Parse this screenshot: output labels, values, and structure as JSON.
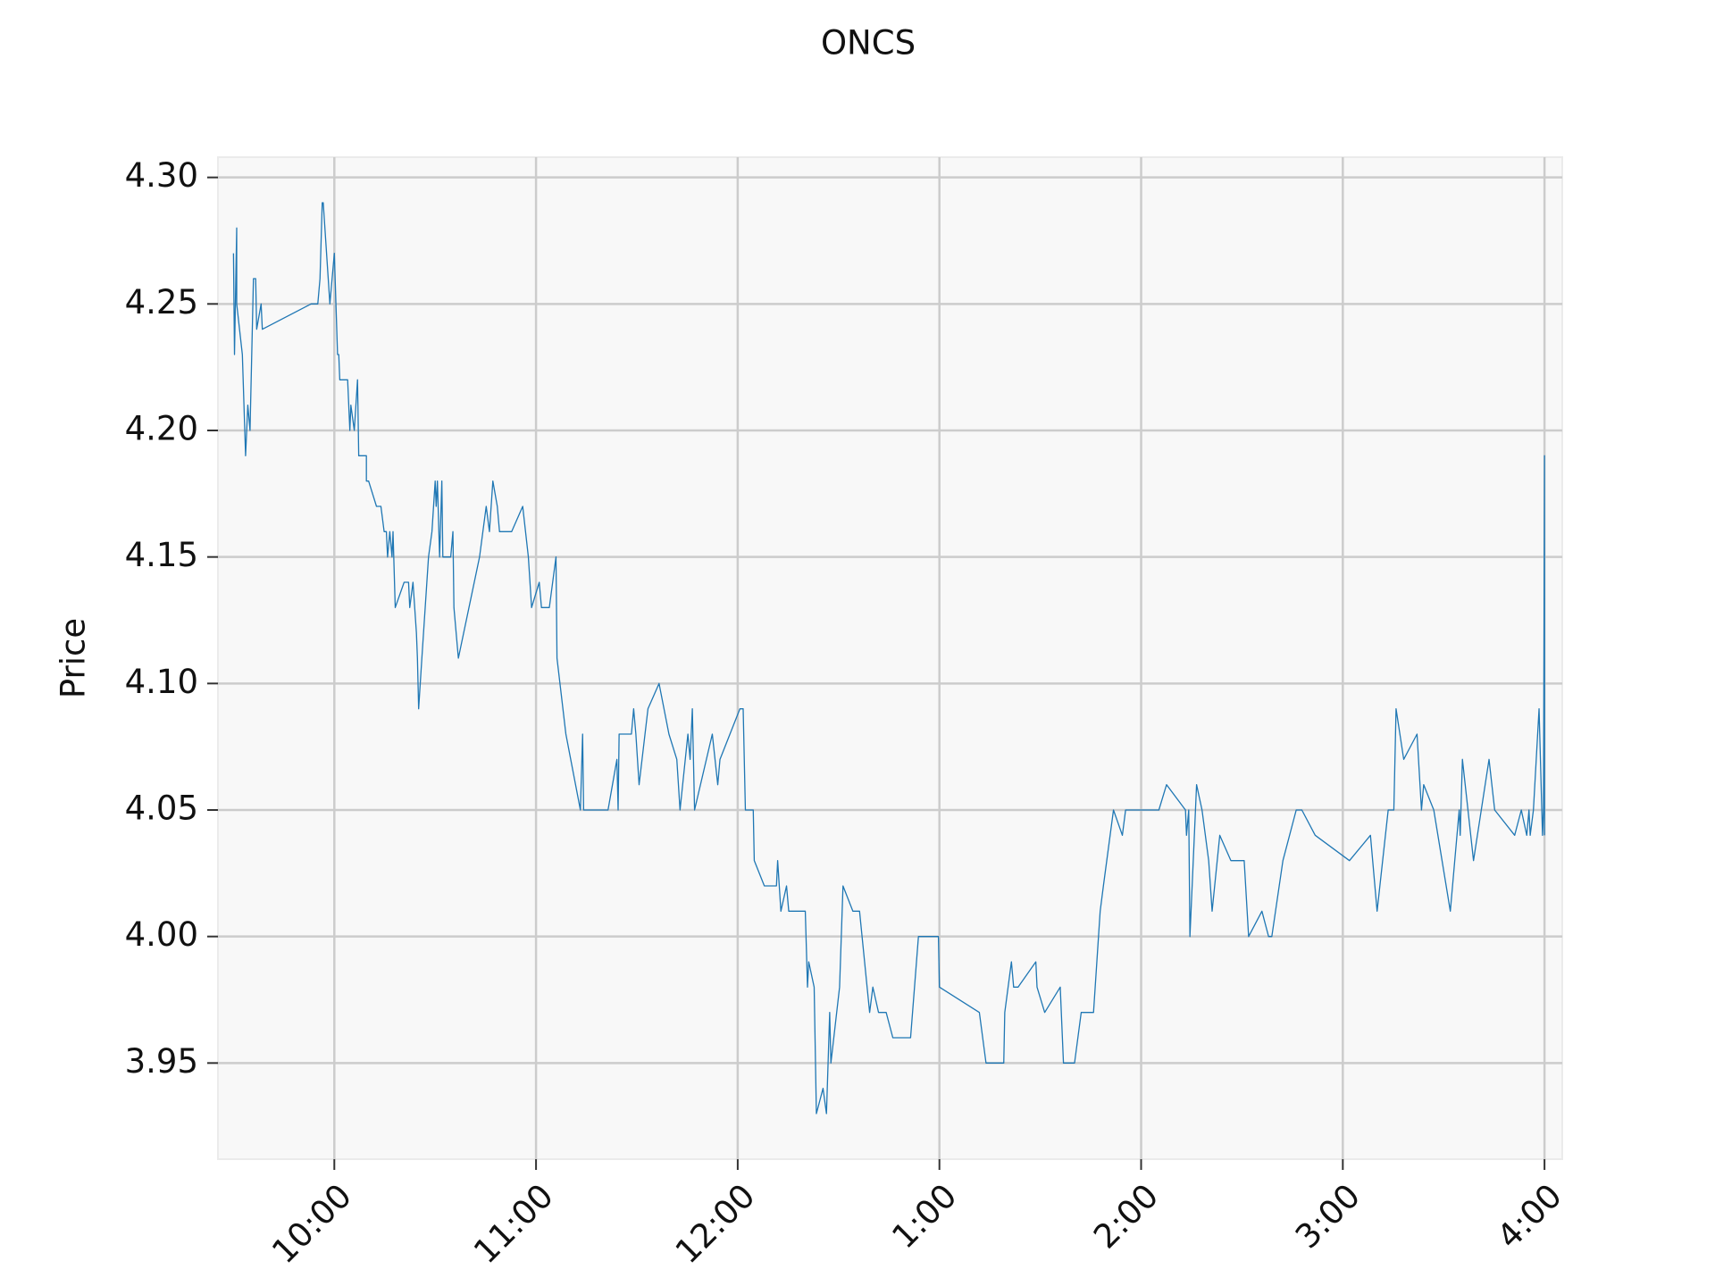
{
  "chart_data": {
    "type": "line",
    "title": "ONCS",
    "ylabel": "Price",
    "color": "#1f77b4",
    "grid": true,
    "xlim": [
      9.423,
      16.088
    ],
    "ylim": [
      3.912,
      4.308
    ],
    "xticks": [
      {
        "value": 10,
        "label": "10:00"
      },
      {
        "value": 11,
        "label": "11:00"
      },
      {
        "value": 12,
        "label": "12:00"
      },
      {
        "value": 13,
        "label": "1:00"
      },
      {
        "value": 14,
        "label": "2:00"
      },
      {
        "value": 15,
        "label": "3:00"
      },
      {
        "value": 16,
        "label": "4:00"
      }
    ],
    "yticks": [
      3.95,
      {
        "value": 4.0,
        "label": "4.00"
      },
      4.05,
      {
        "value": 4.1,
        "label": "4.10"
      },
      4.15,
      {
        "value": 4.2,
        "label": "4.20"
      },
      4.25,
      {
        "value": 4.3,
        "label": "4.30"
      }
    ],
    "x": [
      9.5,
      9.505,
      9.516,
      9.516,
      9.544,
      9.56,
      9.571,
      9.582,
      9.599,
      9.61,
      9.615,
      9.637,
      9.643,
      9.885,
      9.918,
      9.929,
      9.94,
      9.945,
      9.978,
      10.0,
      10.016,
      10.022,
      10.027,
      10.066,
      10.077,
      10.082,
      10.099,
      10.115,
      10.121,
      10.159,
      10.159,
      10.17,
      10.209,
      10.231,
      10.247,
      10.258,
      10.264,
      10.275,
      10.286,
      10.291,
      10.302,
      10.346,
      10.368,
      10.374,
      10.39,
      10.407,
      10.412,
      10.418,
      10.434,
      10.467,
      10.484,
      10.5,
      10.505,
      10.511,
      10.522,
      10.533,
      10.538,
      10.577,
      10.588,
      10.593,
      10.615,
      10.72,
      10.753,
      10.769,
      10.786,
      10.808,
      10.819,
      10.879,
      10.934,
      10.962,
      10.978,
      11.016,
      11.027,
      11.066,
      11.099,
      11.104,
      11.148,
      11.22,
      11.231,
      11.236,
      11.357,
      11.401,
      11.407,
      11.412,
      11.473,
      11.484,
      11.495,
      11.511,
      11.555,
      11.61,
      11.659,
      11.698,
      11.714,
      11.753,
      11.764,
      11.775,
      11.786,
      11.874,
      11.901,
      11.912,
      12.011,
      12.027,
      12.038,
      12.077,
      12.082,
      12.132,
      12.192,
      12.198,
      12.214,
      12.242,
      12.253,
      12.335,
      12.346,
      12.352,
      12.379,
      12.39,
      12.423,
      12.44,
      12.456,
      12.462,
      12.505,
      12.522,
      12.571,
      12.604,
      12.654,
      12.67,
      12.698,
      12.736,
      12.769,
      12.857,
      12.896,
      12.995,
      13.0,
      13.198,
      13.231,
      13.319,
      13.324,
      13.357,
      13.368,
      13.39,
      13.478,
      13.484,
      13.522,
      13.599,
      13.615,
      13.67,
      13.703,
      13.764,
      13.797,
      13.813,
      13.863,
      13.907,
      13.923,
      14.088,
      14.126,
      14.22,
      14.225,
      14.236,
      14.242,
      14.275,
      14.302,
      14.335,
      14.352,
      14.39,
      14.445,
      14.511,
      14.533,
      14.599,
      14.632,
      14.648,
      14.703,
      14.769,
      14.797,
      14.863,
      15.033,
      15.137,
      15.17,
      15.225,
      15.253,
      15.264,
      15.302,
      15.368,
      15.39,
      15.401,
      15.451,
      15.533,
      15.577,
      15.582,
      15.593,
      15.648,
      15.725,
      15.753,
      15.852,
      15.885,
      15.912,
      15.923,
      15.929,
      15.945,
      15.973,
      15.99,
      15.995,
      16.0,
      16.0
    ],
    "values": [
      4.27,
      4.23,
      4.28,
      4.25,
      4.23,
      4.19,
      4.21,
      4.2,
      4.26,
      4.26,
      4.24,
      4.25,
      4.24,
      4.25,
      4.25,
      4.26,
      4.29,
      4.29,
      4.25,
      4.27,
      4.23,
      4.23,
      4.22,
      4.22,
      4.2,
      4.21,
      4.2,
      4.22,
      4.19,
      4.19,
      4.18,
      4.18,
      4.17,
      4.17,
      4.16,
      4.16,
      4.15,
      4.16,
      4.15,
      4.16,
      4.13,
      4.14,
      4.14,
      4.13,
      4.14,
      4.12,
      4.11,
      4.09,
      4.11,
      4.15,
      4.16,
      4.18,
      4.17,
      4.18,
      4.15,
      4.18,
      4.15,
      4.15,
      4.16,
      4.13,
      4.11,
      4.15,
      4.17,
      4.16,
      4.18,
      4.17,
      4.16,
      4.16,
      4.17,
      4.15,
      4.13,
      4.14,
      4.13,
      4.13,
      4.15,
      4.11,
      4.08,
      4.05,
      4.08,
      4.05,
      4.05,
      4.07,
      4.05,
      4.08,
      4.08,
      4.09,
      4.08,
      4.06,
      4.09,
      4.1,
      4.08,
      4.07,
      4.05,
      4.08,
      4.07,
      4.09,
      4.05,
      4.08,
      4.06,
      4.07,
      4.09,
      4.09,
      4.05,
      4.05,
      4.03,
      4.02,
      4.02,
      4.03,
      4.01,
      4.02,
      4.01,
      4.01,
      3.98,
      3.99,
      3.98,
      3.93,
      3.94,
      3.93,
      3.97,
      3.95,
      3.98,
      4.02,
      4.01,
      4.01,
      3.97,
      3.98,
      3.97,
      3.97,
      3.96,
      3.96,
      4.0,
      4.0,
      3.98,
      3.97,
      3.95,
      3.95,
      3.97,
      3.99,
      3.98,
      3.98,
      3.99,
      3.98,
      3.97,
      3.98,
      3.95,
      3.95,
      3.97,
      3.97,
      4.01,
      4.02,
      4.05,
      4.04,
      4.05,
      4.05,
      4.06,
      4.05,
      4.04,
      4.05,
      4.0,
      4.06,
      4.05,
      4.03,
      4.01,
      4.04,
      4.03,
      4.03,
      4.0,
      4.01,
      4.0,
      4.0,
      4.03,
      4.05,
      4.05,
      4.04,
      4.03,
      4.04,
      4.01,
      4.05,
      4.05,
      4.09,
      4.07,
      4.08,
      4.05,
      4.06,
      4.05,
      4.01,
      4.05,
      4.04,
      4.07,
      4.03,
      4.07,
      4.05,
      4.04,
      4.05,
      4.04,
      4.05,
      4.04,
      4.05,
      4.09,
      4.04,
      4.05,
      4.19,
      4.04
    ]
  }
}
